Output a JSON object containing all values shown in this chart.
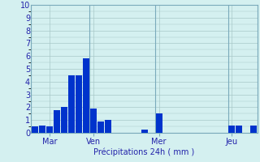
{
  "title": "",
  "xlabel": "Précipitations 24h ( mm )",
  "background_color": "#d4f0f0",
  "plot_bg_color": "#d4f0f0",
  "bar_color": "#0033cc",
  "grid_color": "#a8c8c8",
  "spine_color": "#7aaabb",
  "text_color": "#2222aa",
  "ylim": [
    0,
    10
  ],
  "yticks": [
    0,
    1,
    2,
    3,
    4,
    5,
    6,
    7,
    8,
    9,
    10
  ],
  "bar_values": [
    0.5,
    0.6,
    0.5,
    1.8,
    2.0,
    4.5,
    4.5,
    5.8,
    1.9,
    0.9,
    1.0,
    0.0,
    0.0,
    0.0,
    0.0,
    0.25,
    0.0,
    1.5,
    0.0,
    0.0,
    0.0,
    0.0,
    0.0,
    0.0,
    0.0,
    0.0,
    0.0,
    0.6,
    0.6,
    0.0,
    0.6
  ],
  "n_bars": 31,
  "day_labels": [
    "Mar",
    "Ven",
    "Mer",
    "Jeu"
  ],
  "day_positions": [
    2,
    8,
    17,
    27
  ],
  "xtick_line_positions": [
    0,
    8,
    17,
    27
  ],
  "xlabel_fontsize": 7,
  "ytick_fontsize": 7,
  "xtick_fontsize": 7
}
